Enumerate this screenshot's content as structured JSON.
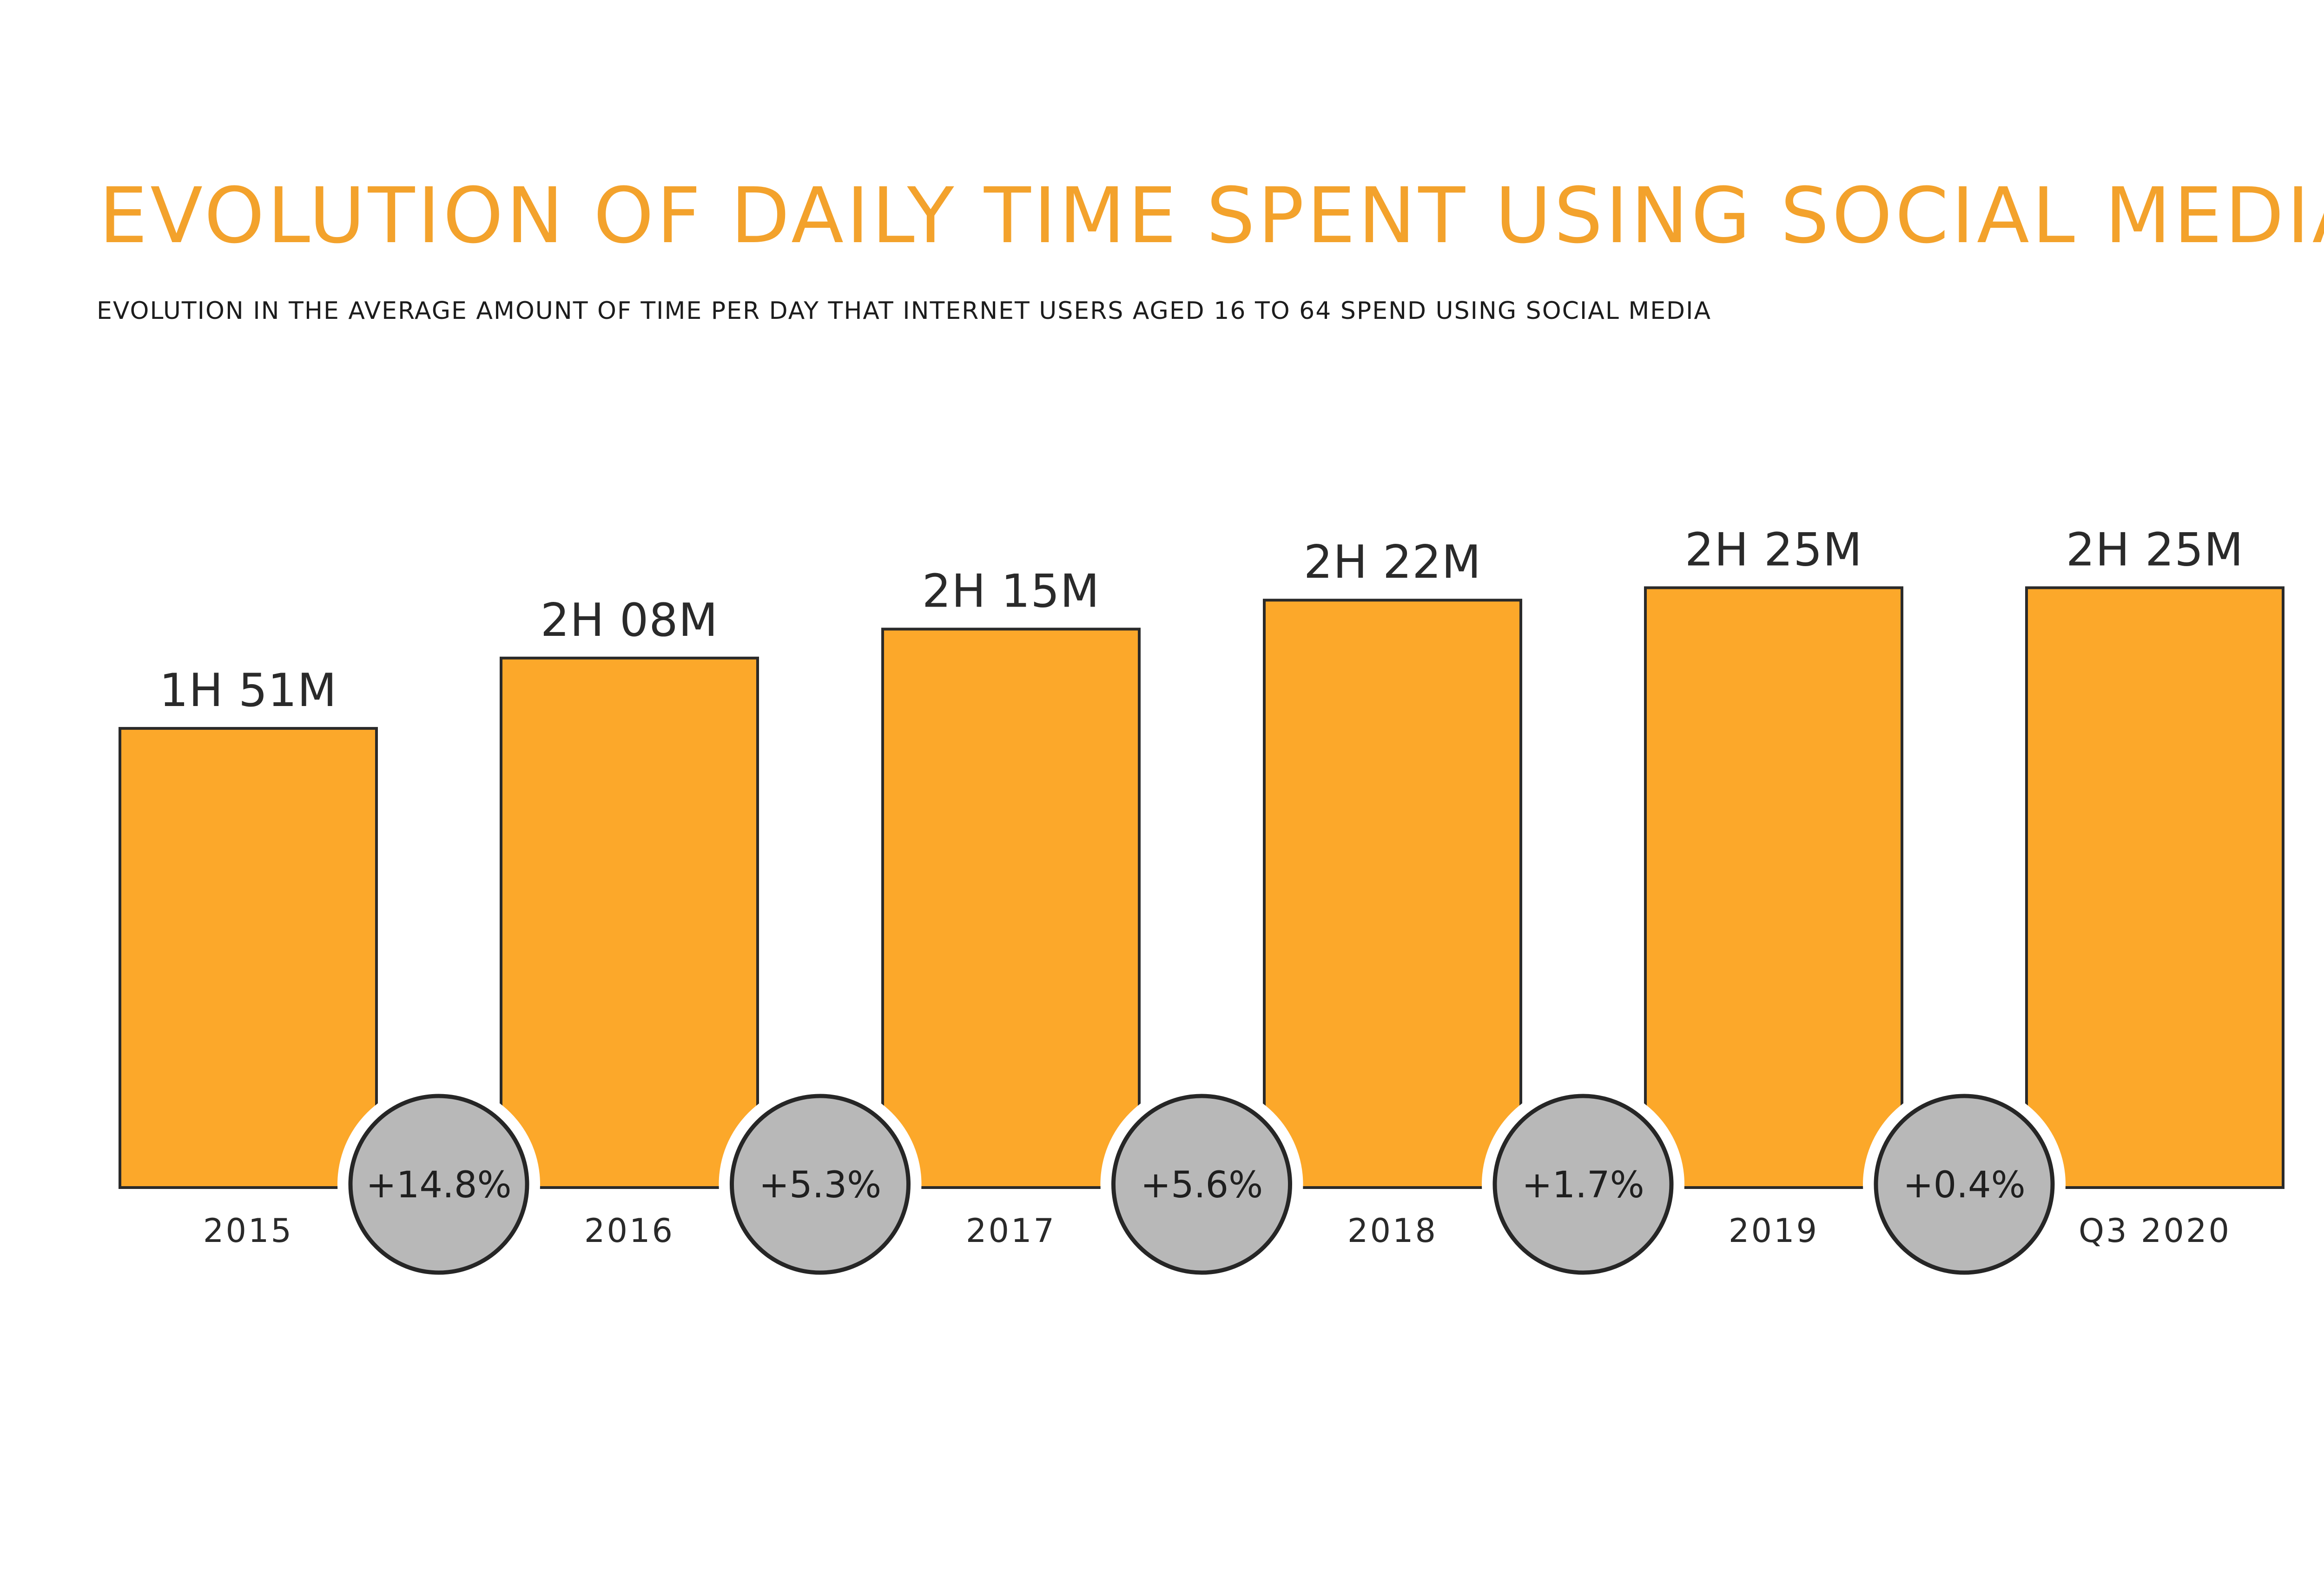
{
  "chart_data": {
    "type": "bar",
    "title": "EVOLUTION OF DAILY TIME SPENT USING SOCIAL MEDIA",
    "subtitle": "EVOLUTION IN THE AVERAGE AMOUNT OF TIME PER DAY THAT INTERNET USERS AGED 16 TO 64 SPEND USING SOCIAL MEDIA",
    "categories": [
      "2015",
      "2016",
      "2017",
      "2018",
      "2019",
      "Q3 2020"
    ],
    "values": [
      111,
      128,
      135,
      142,
      145,
      145
    ],
    "value_labels": [
      "1H 51M",
      "2H 08M",
      "2H 15M",
      "2H 22M",
      "2H 25M",
      "2H 25M"
    ],
    "changes": [
      "+14.8%",
      "+5.3%",
      "+5.6%",
      "+1.7%",
      "+0.4%"
    ],
    "grid": false,
    "colors": {
      "title": "#f3a22c",
      "bar": "#fca82a",
      "badge": "#b8b8b8",
      "outline": "#2a2a2a"
    }
  }
}
